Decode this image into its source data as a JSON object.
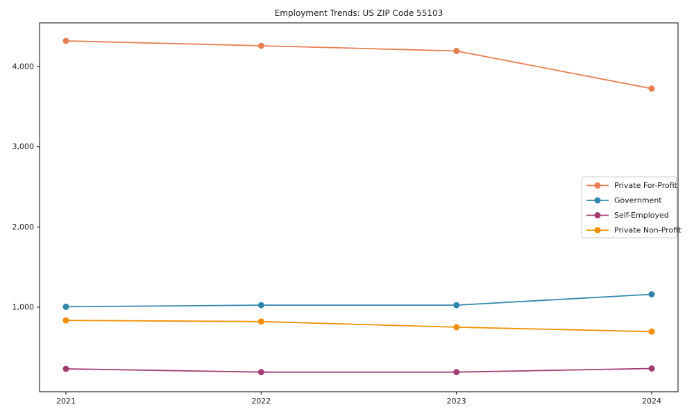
{
  "chart_data": {
    "type": "line",
    "title": "Employment Trends: US ZIP Code 55103",
    "xlabel": "",
    "ylabel": "",
    "x": [
      2021,
      2022,
      2023,
      2024
    ],
    "x_tick_labels": [
      "2021",
      "2022",
      "2023",
      "2024"
    ],
    "y_ticks": [
      1000,
      2000,
      3000,
      4000
    ],
    "y_tick_labels": [
      "1,000",
      "2,000",
      "3,000",
      "4,000"
    ],
    "xlim": [
      2020.865,
      2024.135
    ],
    "ylim": [
      -55,
      4545
    ],
    "grid": false,
    "frame": true,
    "marker": "circle",
    "legend_position": "center-right",
    "background_color": "#ffffff",
    "text_color": "#1a1a1a",
    "axis_color": "#000000",
    "legend_border_color": "#cccccc",
    "series": [
      {
        "name": "Private For-Profit",
        "color": "#E87D50",
        "values": [
          4320,
          4260,
          4195,
          3725
        ]
      },
      {
        "name": "Government",
        "color": "#2E86AB",
        "values": [
          1005,
          1025,
          1025,
          1160
        ]
      },
      {
        "name": "Self-Employed",
        "color": "#A23B72",
        "values": [
          230,
          190,
          190,
          235
        ]
      },
      {
        "name": "Private Non-Profit",
        "color": "#F18F01",
        "values": [
          835,
          820,
          750,
          695
        ]
      }
    ]
  }
}
